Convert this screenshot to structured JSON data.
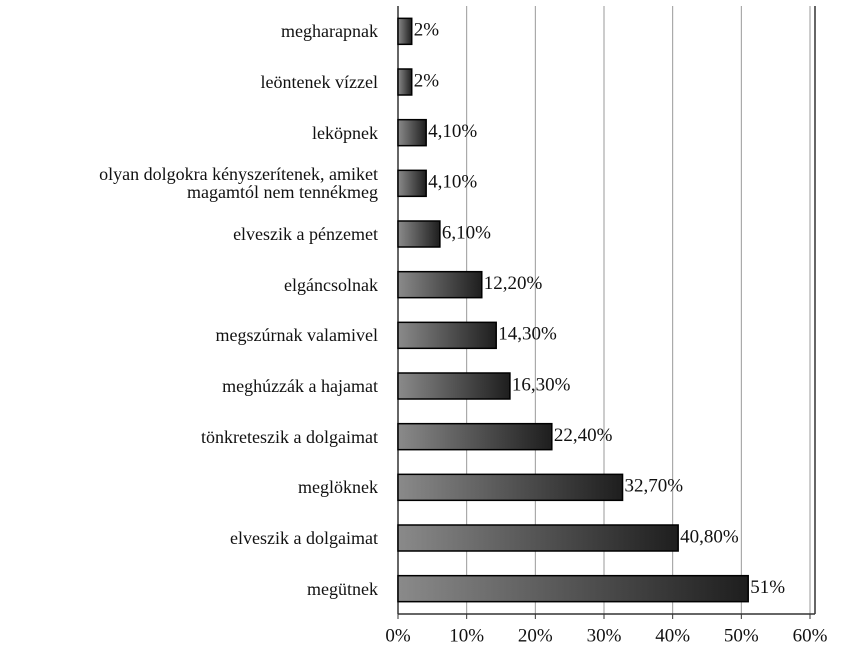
{
  "chart_data": {
    "type": "bar",
    "orientation": "horizontal",
    "categories": [
      "megharapnak",
      "leöntenek vízzel",
      "leköpnek",
      "olyan dolgokra kényszerítenek, amiket\nmagamtól nem tennékmeg",
      "elveszik a pénzemet",
      "elgáncsolnak",
      "megszúrnak valamivel",
      "meghúzzák a hajamat",
      "tönkreteszik a dolgaimat",
      "meglöknek",
      "elveszik a dolgaimat",
      "megütnek"
    ],
    "values": [
      2,
      2,
      4.1,
      4.1,
      6.1,
      12.2,
      14.3,
      16.3,
      22.4,
      32.7,
      40.8,
      51
    ],
    "value_labels": [
      "2%",
      "2%",
      "4,10%",
      "4,10%",
      "6,10%",
      "12,20%",
      "14,30%",
      "16,30%",
      "22,40%",
      "32,70%",
      "40,80%",
      "51%"
    ],
    "color": "#444444",
    "xlim": [
      0,
      60
    ],
    "xticks": [
      {
        "value": 0,
        "label": "0%"
      },
      {
        "value": 10,
        "label": "10%"
      },
      {
        "value": 20,
        "label": "20%"
      },
      {
        "value": 30,
        "label": "30%"
      },
      {
        "value": 40,
        "label": "40%"
      },
      {
        "value": 50,
        "label": "50%"
      },
      {
        "value": 60,
        "label": "60%"
      }
    ],
    "grid": true
  }
}
